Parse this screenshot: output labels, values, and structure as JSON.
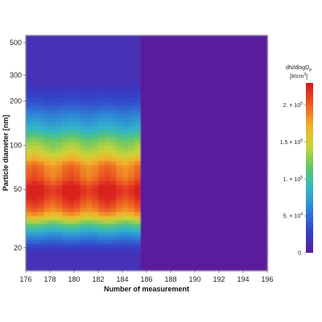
{
  "chart_data": {
    "type": "heatmap",
    "title": "",
    "xlabel": "Number of measurement",
    "ylabel": "Particle diameter [nm]",
    "x_range": [
      176,
      196
    ],
    "y_range_nm": [
      14,
      560
    ],
    "y_scale": "log",
    "x_ticks": [
      "176",
      "178",
      "180",
      "182",
      "184",
      "186",
      "188",
      "190",
      "192",
      "194",
      "196"
    ],
    "y_ticks": [
      "20",
      "50",
      "100",
      "200",
      "300",
      "500"
    ],
    "y_tick_values": [
      20,
      50,
      100,
      200,
      300,
      500
    ],
    "colorbar": {
      "title_line1": "dN/dlogD",
      "title_subscript": "p",
      "title_line2": "[#/cm",
      "title_sup": "3",
      "title_end": "]",
      "range": [
        0,
        230000
      ],
      "ticks": [
        {
          "value": 0,
          "base": "0.",
          "exp": ""
        },
        {
          "value": 50000,
          "base": "5. × 10",
          "exp": "4"
        },
        {
          "value": 100000,
          "base": "1. × 10",
          "exp": "5"
        },
        {
          "value": 150000,
          "base": "1.5 × 10",
          "exp": "5"
        },
        {
          "value": 200000,
          "base": "2. × 10",
          "exp": "5"
        }
      ]
    },
    "data_description_values": {
      "active_measurement_range": [
        176,
        185.6
      ],
      "peak_diameter_nm": 45,
      "peak_concentration": 220000,
      "background_concentration": 0
    },
    "colors": [
      "#5a1f9c",
      "#3440c8",
      "#2f7fd8",
      "#30b6c8",
      "#5fc66a",
      "#c8d43a",
      "#f3b02a",
      "#ec5a22",
      "#d7171f"
    ]
  }
}
